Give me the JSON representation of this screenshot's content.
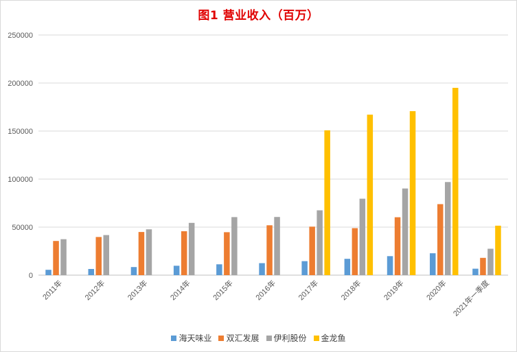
{
  "chart_data": {
    "type": "bar",
    "title": "图1 营业收入（百万）",
    "categories": [
      "2011年",
      "2012年",
      "2013年",
      "2014年",
      "2015年",
      "2016年",
      "2017年",
      "2018年",
      "2019年",
      "2020年",
      "2021年一季度"
    ],
    "ylim": [
      0,
      250000
    ],
    "yticks": [
      0,
      50000,
      100000,
      150000,
      200000,
      250000
    ],
    "ytick_labels": [
      "0",
      "50000",
      "100000",
      "150000",
      "200000",
      "250000"
    ],
    "grid": true,
    "legend_position": "bottom",
    "series": [
      {
        "name": "海天味业",
        "color": "#5b9bd5",
        "values": [
          5600,
          6400,
          8400,
          9800,
          11300,
          12500,
          14600,
          17000,
          19800,
          22800,
          6700
        ]
      },
      {
        "name": "双汇发展",
        "color": "#ed7d31",
        "values": [
          35600,
          39700,
          44900,
          45700,
          44700,
          51900,
          50500,
          48900,
          60300,
          73900,
          18000
        ]
      },
      {
        "name": "伊利股份",
        "color": "#a5a5a5",
        "values": [
          37400,
          41700,
          47700,
          54400,
          60400,
          60600,
          67500,
          79600,
          90200,
          96900,
          27500
        ]
      },
      {
        "name": "金龙鱼",
        "color": "#ffc000",
        "values": [
          null,
          null,
          null,
          null,
          null,
          null,
          150800,
          167100,
          170700,
          195000,
          51500
        ]
      }
    ]
  }
}
